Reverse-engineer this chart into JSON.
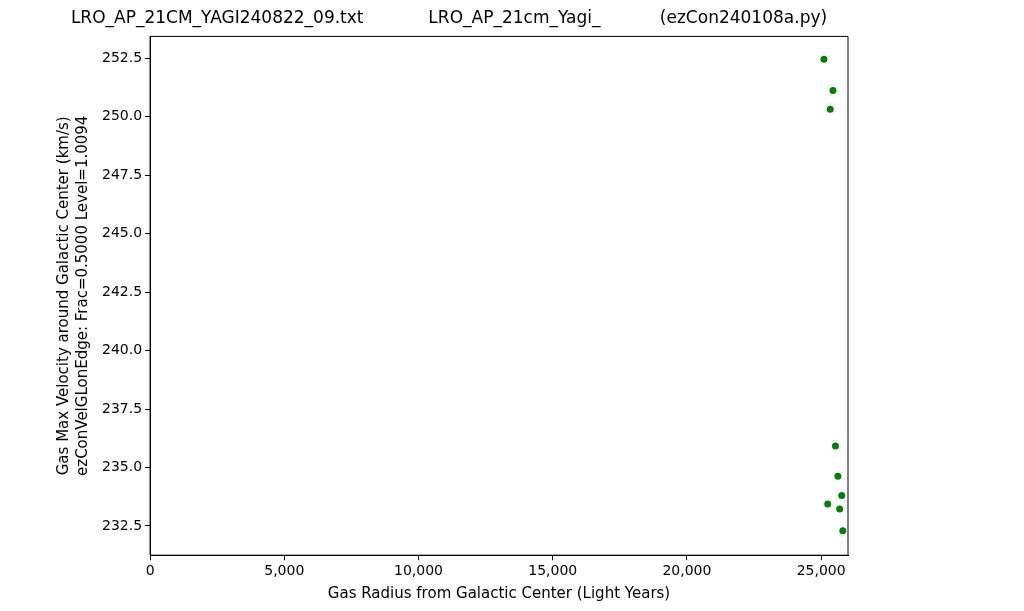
{
  "chart_data": {
    "type": "scatter",
    "title": "LRO_AP_21CM_YAGI240822_09.txt            LRO_AP_21cm_Yagi_           (ezCon240108a.py)",
    "xlabel": "Gas Radius from Galactic Center (Light Years)",
    "ylabel": "Gas Max Velocity around Galactic Center (km/s)\nezConVelGLonEdge: Frac=0.5000 Level=1.0094",
    "x": [
      25105,
      25440,
      25338,
      25533,
      25623,
      25767,
      25245,
      25689,
      25806
    ],
    "values": [
      252.46,
      251.13,
      250.32,
      235.92,
      234.63,
      233.8,
      233.44,
      233.23,
      232.3
    ],
    "color": "#008000",
    "marker": "circle",
    "grid": false,
    "legend": false,
    "xlim": [
      0,
      26000
    ],
    "xticks": [
      0,
      {
        "value": 5000,
        "label": "5,000"
      },
      {
        "value": 10000,
        "label": "10,000"
      },
      {
        "value": 15000,
        "label": "15,000"
      },
      {
        "value": 20000,
        "label": "20,000"
      },
      {
        "value": 25000,
        "label": "25,000"
      }
    ],
    "ylim": [
      231.25,
      253.44
    ],
    "yticks": [
      {
        "value": 232.5,
        "label": "232.5"
      },
      {
        "value": 235,
        "label": "235.0"
      },
      {
        "value": 237.5,
        "label": "237.5"
      },
      {
        "value": 240,
        "label": "240.0"
      },
      {
        "value": 242.5,
        "label": "242.5"
      },
      {
        "value": 245,
        "label": "245.0"
      },
      {
        "value": 247.5,
        "label": "247.5"
      },
      {
        "value": 250,
        "label": "250.0"
      },
      {
        "value": 252.5,
        "label": "252.5"
      }
    ]
  }
}
